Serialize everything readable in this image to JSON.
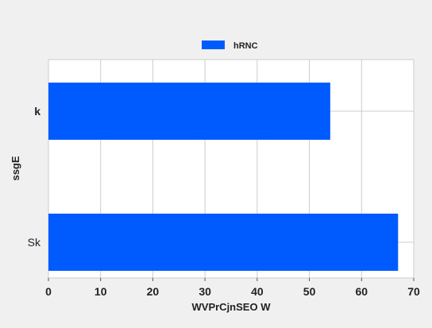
{
  "chart_data": {
    "type": "bar",
    "orientation": "horizontal",
    "title": "",
    "xlabel": "WVPrCjnSEO W",
    "ylabel": "ssgE",
    "categories": [
      "k",
      "Sk"
    ],
    "series": [
      {
        "name": "hRNC",
        "values": [
          54,
          67
        ],
        "color": "#005bff"
      }
    ],
    "xlim": [
      0,
      70
    ],
    "xticks": [
      0,
      10,
      20,
      30,
      40,
      50,
      60,
      70
    ],
    "grid": true,
    "legend_position": "top-center",
    "background_color": "#f0f0f0",
    "plot_background_color": "#ffffff",
    "grid_color": "#cccccc"
  }
}
